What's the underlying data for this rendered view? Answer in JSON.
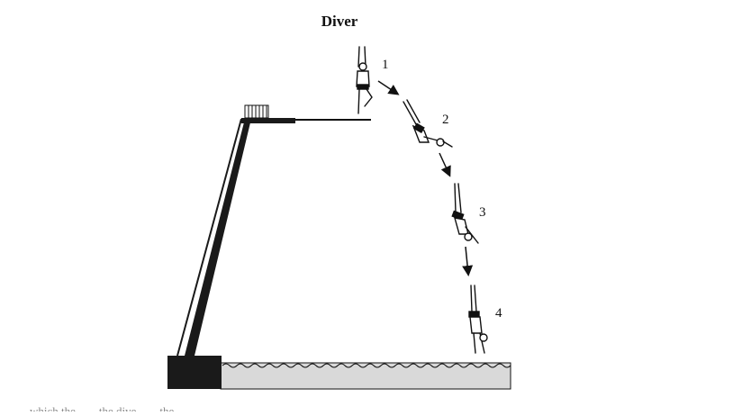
{
  "figure": {
    "title": "Diver",
    "steps": [
      "1",
      "2",
      "3",
      "4"
    ],
    "caption_partial": "... which the... ... the dive... ... the ..."
  },
  "colors": {
    "ink": "#111111",
    "water": "#d9d9d9",
    "tower": "#1a1a1a"
  }
}
